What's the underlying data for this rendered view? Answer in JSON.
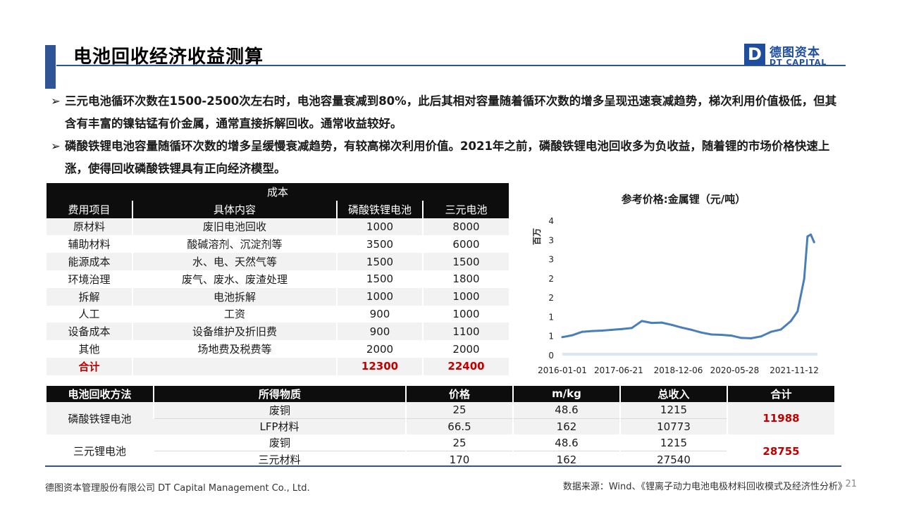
{
  "header": {
    "title": "电池回收经济收益测算",
    "logo_mark": "D",
    "logo_cn": "德图资本",
    "logo_en": "DT CAPITAL"
  },
  "bullets": [
    {
      "mark": "➢",
      "text": "三元电池循环次数在1500-2500次左右时，电池容量衰减到80%，此后其相对容量随着循环次数的增多呈现迅速衰减趋势，梯次利用价值极低，但其含有丰富的镍钴锰有价金属，通常直接拆解回收。通常收益较好。"
    },
    {
      "mark": "➢",
      "text": "磷酸铁锂电池容量随循环次数的增多呈缓慢衰减趋势，有较高梯次利用价值。2021年之前，磷酸铁锂电池回收多为负收益，随着锂的市场价格快速上涨，使得回收磷酸铁锂具有正向经济模型。"
    }
  ],
  "cost_table": {
    "caption": "成本",
    "headers": [
      "费用项目",
      "具体内容",
      "磷酸铁锂电池",
      "三元电池"
    ],
    "rows": [
      [
        "原材料",
        "废旧电池回收",
        "1000",
        "8000"
      ],
      [
        "辅助材料",
        "酸碱溶剂、沉淀剂等",
        "3500",
        "6000"
      ],
      [
        "能源成本",
        "水、电、天然气等",
        "1500",
        "1500"
      ],
      [
        "环境治理",
        "废气、废水、废渣处理",
        "1500",
        "1800"
      ],
      [
        "拆解",
        "电池拆解",
        "1000",
        "1000"
      ],
      [
        "人工",
        "工资",
        "900",
        "1000"
      ],
      [
        "设备成本",
        "设备维护及折旧费",
        "900",
        "1100"
      ],
      [
        "其他",
        "场地费及税费等",
        "2000",
        "2000"
      ]
    ],
    "total": [
      "合计",
      "",
      "12300",
      "22400"
    ]
  },
  "recycle_table": {
    "headers": [
      "电池回收方法",
      "所得物质",
      "价格",
      "m/kg",
      "总收入",
      "合计"
    ],
    "groups": [
      {
        "method": "磷酸铁锂电池",
        "sum": "11988",
        "rows": [
          [
            "废铜",
            "25",
            "48.6",
            "1215"
          ],
          [
            "LFP材料",
            "66.5",
            "162",
            "10773"
          ]
        ]
      },
      {
        "method": "三元锂电池",
        "sum": "28755",
        "rows": [
          [
            "废铜",
            "25",
            "48.6",
            "1215"
          ],
          [
            "三元材料",
            "170",
            "162",
            "27540"
          ]
        ]
      }
    ]
  },
  "chart_data": {
    "type": "area",
    "title": "参考价格:金属锂（元/吨）",
    "ylabel": "百万",
    "ylim": [
      0,
      3.5
    ],
    "y_ticks": [
      0,
      0.5,
      1,
      1.5,
      2,
      2.5,
      3,
      3.5
    ],
    "y_tick_labels": [
      "0",
      "1",
      "1",
      "2",
      "2",
      "3",
      "3",
      "4"
    ],
    "x_tick_labels": [
      "2016-01-01",
      "2017-06-21",
      "2018-12-06",
      "2020-05-28",
      "2021-11-12"
    ],
    "x": [
      "2016-01",
      "2016-04",
      "2016-07",
      "2016-10",
      "2017-01",
      "2017-04",
      "2017-07",
      "2017-10",
      "2018-01",
      "2018-04",
      "2018-07",
      "2018-10",
      "2019-01",
      "2019-04",
      "2019-07",
      "2019-10",
      "2020-01",
      "2020-04",
      "2020-07",
      "2020-10",
      "2021-01",
      "2021-04",
      "2021-07",
      "2021-10",
      "2021-12",
      "2022-02",
      "2022-03",
      "2022-04",
      "2022-05"
    ],
    "series": [
      {
        "values": [
          0.48,
          0.53,
          0.62,
          0.64,
          0.65,
          0.67,
          0.69,
          0.72,
          0.9,
          0.85,
          0.86,
          0.8,
          0.73,
          0.67,
          0.6,
          0.55,
          0.54,
          0.52,
          0.46,
          0.45,
          0.5,
          0.62,
          0.68,
          0.9,
          1.15,
          2.0,
          3.1,
          3.15,
          2.95
        ]
      }
    ],
    "colors": {
      "line": "#4a7ebb",
      "area": "#dbe6f4"
    },
    "grid": false,
    "legend": "none"
  },
  "footer": {
    "company": "德图资本管理股份有限公司  DT Capital Management  Co., Ltd.",
    "source": "数据来源：Wind、《锂离子动力电池电极材料回收模式及经济性分析》",
    "page": "21"
  }
}
